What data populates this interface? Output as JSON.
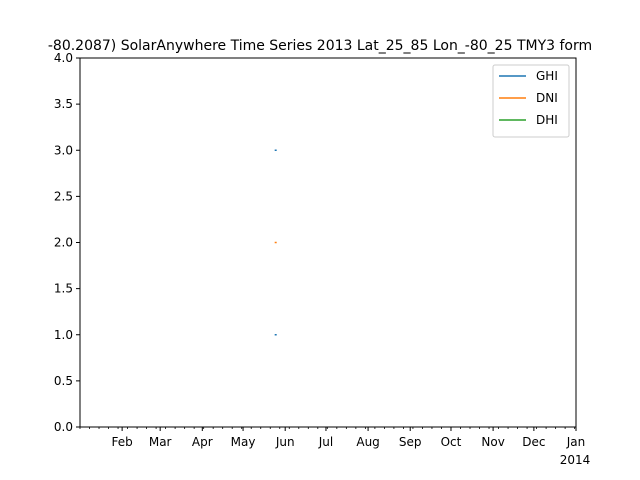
{
  "chart_data": {
    "type": "line",
    "title": "-80.2087) SolarAnywhere Time Series 2013 Lat_25_85 Lon_-80_25 TMY3 form",
    "xlabel": "",
    "ylabel": "",
    "x_range": [
      "2013-01-01",
      "2014-01-01"
    ],
    "ylim": [
      0.0,
      4.0
    ],
    "y_ticks": [
      "0.0",
      "0.5",
      "1.0",
      "1.5",
      "2.0",
      "2.5",
      "3.0",
      "3.5",
      "4.0"
    ],
    "x_ticks": [
      {
        "date": "2013-02-01",
        "label": "Feb"
      },
      {
        "date": "2013-03-01",
        "label": "Mar"
      },
      {
        "date": "2013-04-01",
        "label": "Apr"
      },
      {
        "date": "2013-05-01",
        "label": "May"
      },
      {
        "date": "2013-06-01",
        "label": "Jun"
      },
      {
        "date": "2013-07-01",
        "label": "Jul"
      },
      {
        "date": "2013-08-01",
        "label": "Aug"
      },
      {
        "date": "2013-09-01",
        "label": "Sep"
      },
      {
        "date": "2013-10-01",
        "label": "Oct"
      },
      {
        "date": "2013-11-01",
        "label": "Nov"
      },
      {
        "date": "2013-12-01",
        "label": "Dec"
      },
      {
        "date": "2014-01-01",
        "label": "Jan",
        "sublabel": "2014"
      }
    ],
    "grid": false,
    "legend_position": "top-right",
    "series": [
      {
        "name": "GHI",
        "color": "#1f77b4",
        "points": [
          {
            "x": "2013-05-25",
            "y": 1.0
          },
          {
            "x": "2013-05-25",
            "y": 3.0
          }
        ]
      },
      {
        "name": "DNI",
        "color": "#ff7f0e",
        "points": [
          {
            "x": "2013-05-25",
            "y": 2.0
          }
        ]
      },
      {
        "name": "DHI",
        "color": "#2ca02c",
        "points": []
      }
    ]
  }
}
